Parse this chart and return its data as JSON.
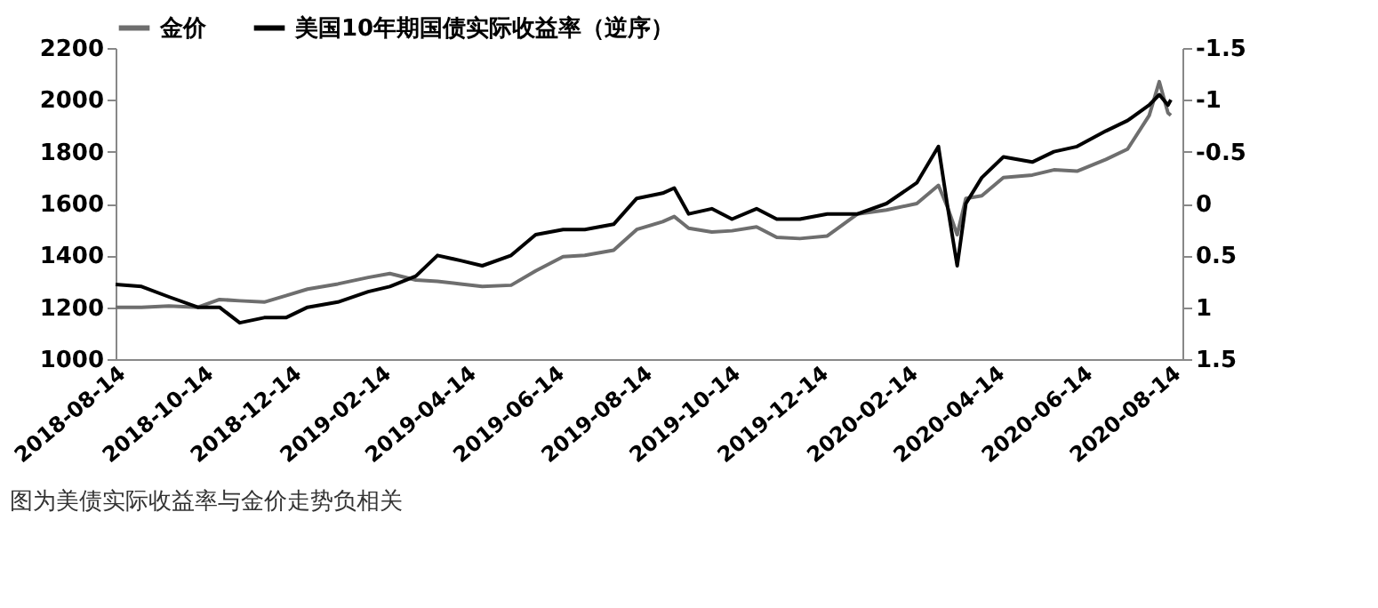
{
  "chart_data": {
    "type": "line",
    "x": [
      "2018-08-14",
      "2018-09-01",
      "2018-09-20",
      "2018-10-10",
      "2018-10-25",
      "2018-11-08",
      "2018-11-25",
      "2018-12-10",
      "2018-12-25",
      "2019-01-15",
      "2019-02-05",
      "2019-02-20",
      "2019-03-10",
      "2019-03-25",
      "2019-04-10",
      "2019-04-25",
      "2019-05-15",
      "2019-06-01",
      "2019-06-20",
      "2019-07-05",
      "2019-07-25",
      "2019-08-10",
      "2019-08-28",
      "2019-09-05",
      "2019-09-15",
      "2019-10-01",
      "2019-10-15",
      "2019-11-01",
      "2019-11-15",
      "2019-12-01",
      "2019-12-20",
      "2020-01-10",
      "2020-01-30",
      "2020-02-20",
      "2020-03-06",
      "2020-03-12",
      "2020-03-19",
      "2020-03-25",
      "2020-04-05",
      "2020-04-20",
      "2020-05-10",
      "2020-05-25",
      "2020-06-10",
      "2020-06-30",
      "2020-07-15",
      "2020-07-30",
      "2020-08-06",
      "2020-08-12",
      "2020-08-14"
    ],
    "series": [
      {
        "name": "金价",
        "color": "#6e6e6e",
        "values": [
          1200,
          1200,
          1205,
          1200,
          1230,
          1225,
          1220,
          1245,
          1270,
          1290,
          1315,
          1330,
          1305,
          1300,
          1290,
          1280,
          1285,
          1340,
          1395,
          1400,
          1420,
          1500,
          1530,
          1550,
          1505,
          1490,
          1495,
          1510,
          1470,
          1465,
          1475,
          1560,
          1575,
          1600,
          1670,
          1590,
          1480,
          1620,
          1630,
          1700,
          1710,
          1730,
          1725,
          1770,
          1810,
          1940,
          2070,
          1950,
          1940
        ]
      },
      {
        "name": "美国10年期国债实际收益率（逆序）",
        "color": "#000000",
        "axis": "y2",
        "values": [
          0.78,
          0.8,
          0.9,
          1.0,
          1.0,
          1.15,
          1.1,
          1.1,
          1.0,
          0.95,
          0.85,
          0.8,
          0.7,
          0.5,
          0.55,
          0.6,
          0.5,
          0.3,
          0.25,
          0.25,
          0.2,
          -0.05,
          -0.1,
          -0.15,
          0.1,
          0.05,
          0.15,
          0.05,
          0.15,
          0.15,
          0.1,
          0.1,
          0.0,
          -0.2,
          -0.55,
          0.0,
          0.6,
          0.0,
          -0.25,
          -0.45,
          -0.4,
          -0.5,
          -0.55,
          -0.7,
          -0.8,
          -0.95,
          -1.05,
          -0.95,
          -1.0
        ]
      }
    ],
    "xlim": [
      "2018-08-14",
      "2020-08-22"
    ],
    "xticks": [
      "2018-08-14",
      "2018-10-14",
      "2018-12-14",
      "2019-02-14",
      "2019-04-14",
      "2019-06-14",
      "2019-08-14",
      "2019-10-14",
      "2019-12-14",
      "2020-02-14",
      "2020-04-14",
      "2020-06-14",
      "2020-08-14"
    ],
    "ylim": [
      1000,
      2200
    ],
    "yticks": [
      1000,
      1200,
      1400,
      1600,
      1800,
      2000,
      2200
    ],
    "y2lim": [
      1.5,
      -1.5
    ],
    "y2ticks": [
      1.5,
      1,
      0.5,
      0,
      -0.5,
      -1,
      -1.5
    ],
    "legend": "top left",
    "grid": false,
    "annotations": [
      "图为美债实际收益率与金价走势负相关"
    ]
  }
}
